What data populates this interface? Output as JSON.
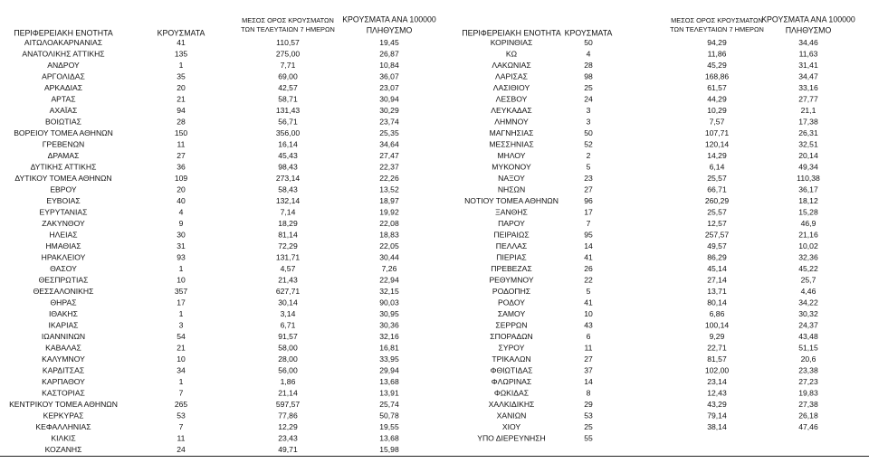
{
  "tables": [
    {
      "header": [
        "ΠΕΡΙΦΕΡΕΙΑΚΗ ΕΝΟΤΗΤΑ",
        "ΚΡΟΥΣΜΑΤΑ",
        [
          "ΜΕΣΟΣ ΟΡΟΣ ΚΡΟΥΣΜΑΤΩΝ",
          "ΤΩΝ ΤΕΛΕΥΤΑΙΩΝ 7 ΗΜΕΡΩΝ"
        ],
        [
          "ΚΡΟΥΣΜΑΤΑ ΑΝΑ 100000",
          "ΠΛΗΘΥΣΜΟ"
        ]
      ],
      "rows": [
        [
          "ΑΙΤΩΛΟΑΚΑΡΝΑΝΙΑΣ",
          "41",
          "110,57",
          "19,45"
        ],
        [
          "ΑΝΑΤΟΛΙΚΗΣ ΑΤΤΙΚΗΣ",
          "135",
          "275,00",
          "26,87"
        ],
        [
          "ΑΝΔΡΟΥ",
          "1",
          "7,71",
          "10,84"
        ],
        [
          "ΑΡΓΟΛΙΔΑΣ",
          "35",
          "69,00",
          "36,07"
        ],
        [
          "ΑΡΚΑΔΙΑΣ",
          "20",
          "42,57",
          "23,07"
        ],
        [
          "ΑΡΤΑΣ",
          "21",
          "58,71",
          "30,94"
        ],
        [
          "ΑΧΑΪΑΣ",
          "94",
          "131,43",
          "30,29"
        ],
        [
          "ΒΟΙΩΤΙΑΣ",
          "28",
          "56,71",
          "23,74"
        ],
        [
          "ΒΟΡΕΙΟΥ ΤΟΜΕΑ ΑΘΗΝΩΝ",
          "150",
          "356,00",
          "25,35"
        ],
        [
          "ΓΡΕΒΕΝΩΝ",
          "11",
          "16,14",
          "34,64"
        ],
        [
          "ΔΡΑΜΑΣ",
          "27",
          "45,43",
          "27,47"
        ],
        [
          "ΔΥΤΙΚΗΣ ΑΤΤΙΚΗΣ",
          "36",
          "98,43",
          "22,37"
        ],
        [
          "ΔΥΤΙΚΟΥ ΤΟΜΕΑ ΑΘΗΝΩΝ",
          "109",
          "273,14",
          "22,26"
        ],
        [
          "ΕΒΡΟΥ",
          "20",
          "58,43",
          "13,52"
        ],
        [
          "ΕΥΒΟΙΑΣ",
          "40",
          "132,14",
          "18,97"
        ],
        [
          "ΕΥΡΥΤΑΝΙΑΣ",
          "4",
          "7,14",
          "19,92"
        ],
        [
          "ΖΑΚΥΝΘΟΥ",
          "9",
          "18,29",
          "22,08"
        ],
        [
          "ΗΛΕΙΑΣ",
          "30",
          "81,14",
          "18,83"
        ],
        [
          "ΗΜΑΘΙΑΣ",
          "31",
          "72,29",
          "22,05"
        ],
        [
          "ΗΡΑΚΛΕΙΟΥ",
          "93",
          "131,71",
          "30,44"
        ],
        [
          "ΘΑΣΟΥ",
          "1",
          "4,57",
          "7,26"
        ],
        [
          "ΘΕΣΠΡΩΤΙΑΣ",
          "10",
          "21,43",
          "22,94"
        ],
        [
          "ΘΕΣΣΑΛΟΝΙΚΗΣ",
          "357",
          "627,71",
          "32,15"
        ],
        [
          "ΘΗΡΑΣ",
          "17",
          "30,14",
          "90,03"
        ],
        [
          "ΙΘΑΚΗΣ",
          "1",
          "3,14",
          "30,95"
        ],
        [
          "ΙΚΑΡΙΑΣ",
          "3",
          "6,71",
          "30,36"
        ],
        [
          "ΙΩΑΝΝΙΝΩΝ",
          "54",
          "91,57",
          "32,16"
        ],
        [
          "ΚΑΒΑΛΑΣ",
          "21",
          "58,00",
          "16,81"
        ],
        [
          "ΚΑΛΥΜΝΟΥ",
          "10",
          "28,00",
          "33,95"
        ],
        [
          "ΚΑΡΔΙΤΣΑΣ",
          "34",
          "56,00",
          "29,94"
        ],
        [
          "ΚΑΡΠΑΘΟΥ",
          "1",
          "1,86",
          "13,68"
        ],
        [
          "ΚΑΣΤΟΡΙΑΣ",
          "7",
          "21,14",
          "13,91"
        ],
        [
          "ΚΕΝΤΡΙΚΟΥ ΤΟΜΕΑ ΑΘΗΝΩΝ",
          "265",
          "597,57",
          "25,74"
        ],
        [
          "ΚΕΡΚΥΡΑΣ",
          "53",
          "77,86",
          "50,78"
        ],
        [
          "ΚΕΦΑΛΛΗΝΙΑΣ",
          "7",
          "12,29",
          "19,55"
        ],
        [
          "ΚΙΛΚΙΣ",
          "11",
          "23,43",
          "13,68"
        ],
        [
          "ΚΟΖΑΝΗΣ",
          "24",
          "49,71",
          "15,98"
        ]
      ]
    },
    {
      "header": [
        "ΠΕΡΙΦΕΡΕΙΑΚΗ ΕΝΟΤΗΤΑ",
        "ΚΡΟΥΣΜΑΤΑ",
        [
          "ΜΕΣΟΣ ΟΡΟΣ ΚΡΟΥΣΜΑΤΩΝ",
          "ΤΩΝ ΤΕΛΕΥΤΑΙΩΝ 7 ΗΜΕΡΩΝ"
        ],
        [
          "ΚΡΟΥΣΜΑΤΑ ΑΝΑ 100000",
          "ΠΛΗΘΥΣΜΟ"
        ]
      ],
      "rows": [
        [
          "ΚΟΡΙΝΘΙΑΣ",
          "50",
          "94,29",
          "34,46"
        ],
        [
          "ΚΩ",
          "4",
          "11,86",
          "11,63"
        ],
        [
          "ΛΑΚΩΝΙΑΣ",
          "28",
          "45,29",
          "31,41"
        ],
        [
          "ΛΑΡΙΣΑΣ",
          "98",
          "168,86",
          "34,47"
        ],
        [
          "ΛΑΣΙΘΙΟΥ",
          "25",
          "61,57",
          "33,16"
        ],
        [
          "ΛΕΣΒΟΥ",
          "24",
          "44,29",
          "27,77"
        ],
        [
          "ΛΕΥΚΑΔΑΣ",
          "3",
          "10,29",
          "21,1"
        ],
        [
          "ΛΗΜΝΟΥ",
          "3",
          "7,57",
          "17,38"
        ],
        [
          "ΜΑΓΝΗΣΙΑΣ",
          "50",
          "107,71",
          "26,31"
        ],
        [
          "ΜΕΣΣΗΝΙΑΣ",
          "52",
          "120,14",
          "32,51"
        ],
        [
          "ΜΗΛΟΥ",
          "2",
          "14,29",
          "20,14"
        ],
        [
          "ΜΥΚΟΝΟΥ",
          "5",
          "6,14",
          "49,34"
        ],
        [
          "ΝΑΞΟΥ",
          "23",
          "25,57",
          "110,38"
        ],
        [
          "ΝΗΣΩΝ",
          "27",
          "66,71",
          "36,17"
        ],
        [
          "ΝΟΤΙΟΥ ΤΟΜΕΑ ΑΘΗΝΩΝ",
          "96",
          "260,29",
          "18,12"
        ],
        [
          "ΞΑΝΘΗΣ",
          "17",
          "25,57",
          "15,28"
        ],
        [
          "ΠΑΡΟΥ",
          "7",
          "12,57",
          "46,9"
        ],
        [
          "ΠΕΙΡΑΙΩΣ",
          "95",
          "257,57",
          "21,16"
        ],
        [
          "ΠΕΛΛΑΣ",
          "14",
          "49,57",
          "10,02"
        ],
        [
          "ΠΙΕΡΙΑΣ",
          "41",
          "86,29",
          "32,36"
        ],
        [
          "ΠΡΕΒΕΖΑΣ",
          "26",
          "45,14",
          "45,22"
        ],
        [
          "ΡΕΘΥΜΝΟΥ",
          "22",
          "27,14",
          "25,7"
        ],
        [
          "ΡΟΔΟΠΗΣ",
          "5",
          "13,71",
          "4,46"
        ],
        [
          "ΡΟΔΟΥ",
          "41",
          "80,14",
          "34,22"
        ],
        [
          "ΣΑΜΟΥ",
          "10",
          "6,86",
          "30,32"
        ],
        [
          "ΣΕΡΡΩΝ",
          "43",
          "100,14",
          "24,37"
        ],
        [
          "ΣΠΟΡΑΔΩΝ",
          "6",
          "9,29",
          "43,48"
        ],
        [
          "ΣΥΡΟΥ",
          "11",
          "22,71",
          "51,15"
        ],
        [
          "ΤΡΙΚΑΛΩΝ",
          "27",
          "81,57",
          "20,6"
        ],
        [
          "ΦΘΙΩΤΙΔΑΣ",
          "37",
          "102,00",
          "23,38"
        ],
        [
          "ΦΛΩΡΙΝΑΣ",
          "14",
          "23,14",
          "27,23"
        ],
        [
          "ΦΩΚΙΔΑΣ",
          "8",
          "12,43",
          "19,83"
        ],
        [
          "ΧΑΛΚΙΔΙΚΗΣ",
          "29",
          "43,29",
          "27,38"
        ],
        [
          "ΧΑΝΙΩΝ",
          "53",
          "79,14",
          "26,18"
        ],
        [
          "ΧΙΟΥ",
          "25",
          "38,14",
          "47,46"
        ],
        [
          "ΥΠΟ ΔΙΕΡΕΥΝΗΣΗ",
          "55"
        ]
      ]
    }
  ]
}
